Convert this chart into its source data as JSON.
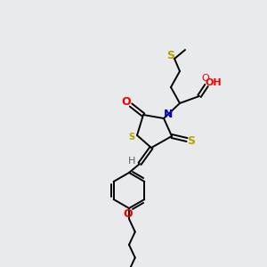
{
  "background_color": "#e8eaec",
  "atom_colors": {
    "S": "#b8a000",
    "N": "#0000dd",
    "O": "#ee0000",
    "C": "#000000",
    "H": "#606060"
  },
  "figsize": [
    3.0,
    3.0
  ],
  "dpi": 100
}
